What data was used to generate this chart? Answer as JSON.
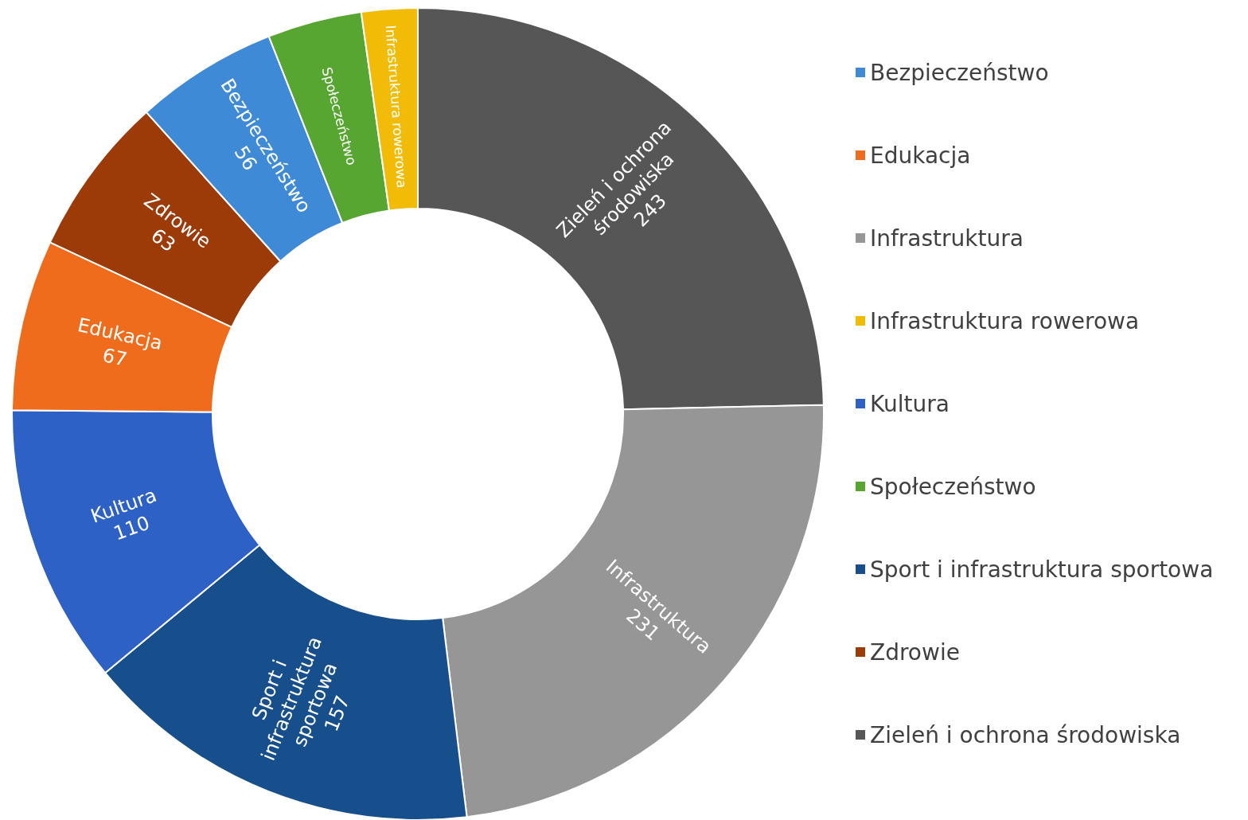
{
  "chart_data": {
    "type": "donut",
    "categories": [
      "Zieleń i ochrona środowiska",
      "Infrastruktura",
      "Sport i infrastruktura sportowa",
      "Kultura",
      "Edukacja",
      "Zdrowie",
      "Bezpieczeństwo",
      "Społeczeństwo",
      "Infrastruktura rowerowa"
    ],
    "values": [
      243,
      231,
      157,
      110,
      67,
      63,
      56,
      37,
      22
    ],
    "value_labels": [
      "243",
      "231",
      "157",
      "110",
      "67",
      "63",
      "56",
      null,
      null
    ],
    "colors": [
      "#565656",
      "#969696",
      "#174f8c",
      "#2d61c6",
      "#ee6c1c",
      "#9c3a08",
      "#3f8ad6",
      "#57a632",
      "#f2bc06"
    ],
    "legend": "right"
  }
}
